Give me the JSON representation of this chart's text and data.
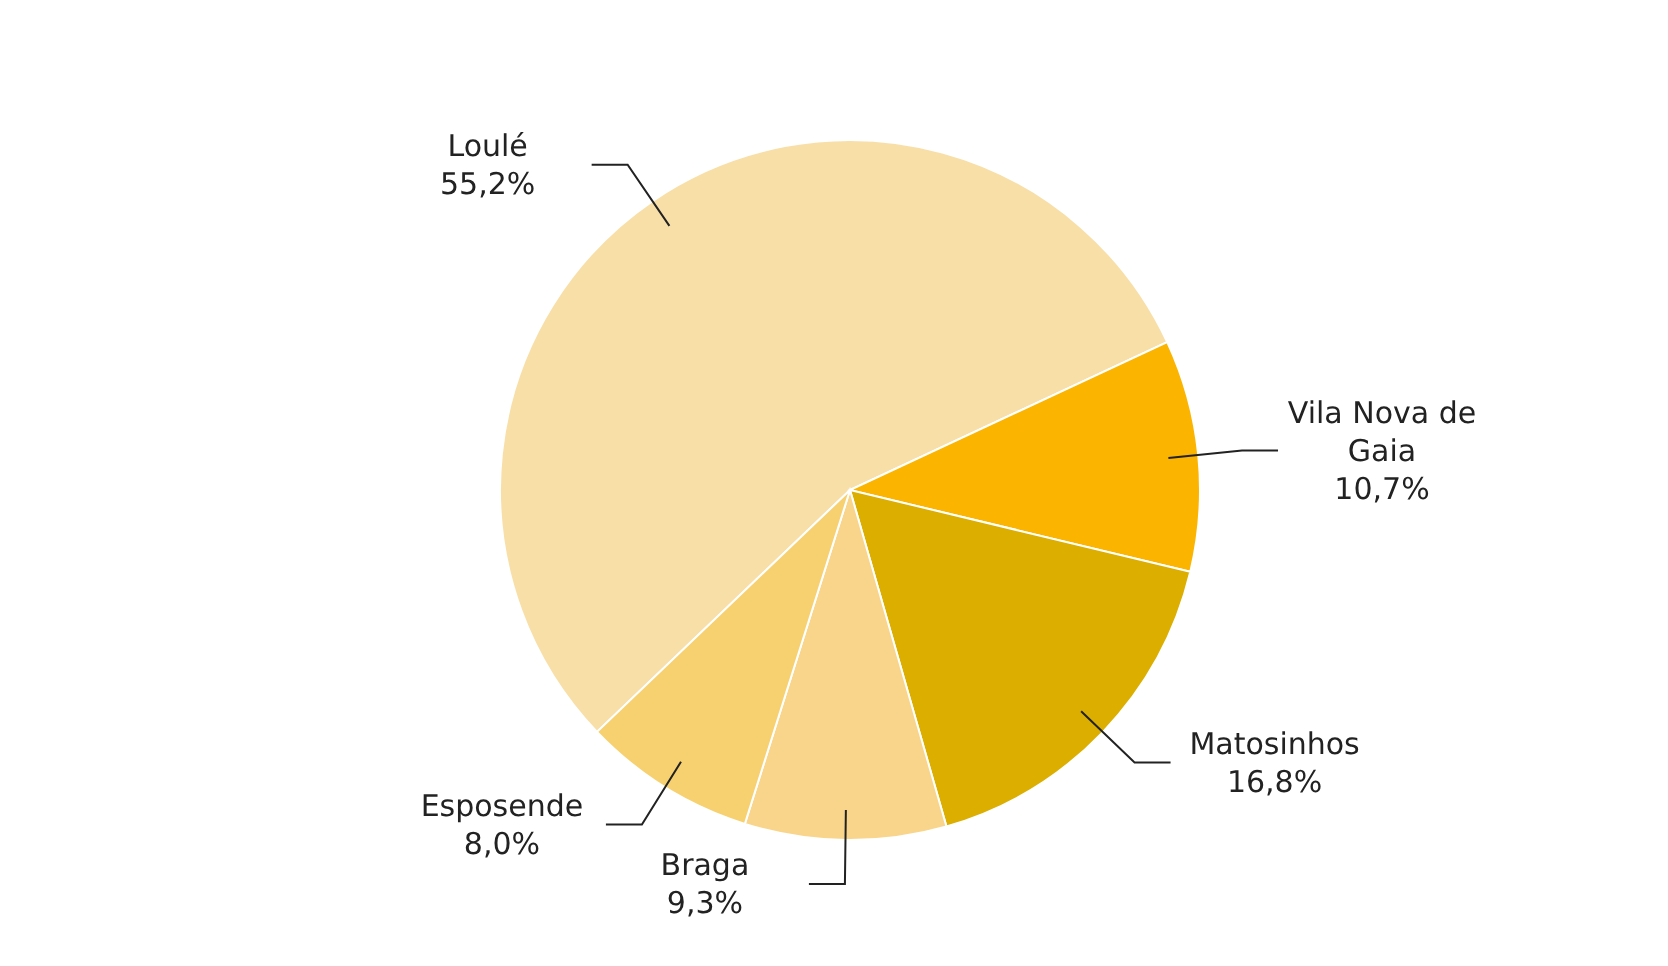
{
  "chart_data": {
    "type": "pie",
    "categories": [
      "Loulé",
      "Vila Nova de Gaia",
      "Matosinhos",
      "Braga",
      "Esposende"
    ],
    "values": [
      55.2,
      10.7,
      16.8,
      9.3,
      8.0
    ],
    "value_labels": [
      "55,2%",
      "10,7%",
      "16,8%",
      "9,3%",
      "8,0%"
    ],
    "colors": [
      "#f8dfa8",
      "#fbb400",
      "#dcae00",
      "#f8d58a",
      "#f7d070"
    ]
  }
}
